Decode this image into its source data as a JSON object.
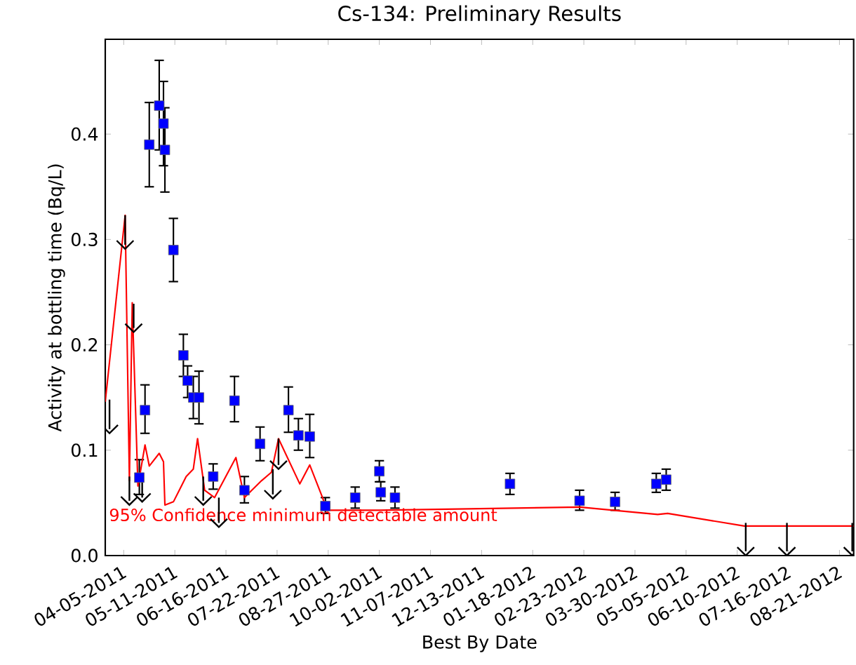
{
  "chart_data": {
    "type": "scatter",
    "title": "Cs-134: Preliminary Results",
    "xlabel": "Best By Date",
    "ylabel": "Activity at bottling time (Bq/L)",
    "xlim": [
      "2011-03-23",
      "2012-08-31"
    ],
    "ylim": [
      0,
      0.49
    ],
    "xticks": [
      {
        "value": "2011-04-05",
        "label": "04-05-2011"
      },
      {
        "value": "2011-05-11",
        "label": "05-11-2011"
      },
      {
        "value": "2011-06-16",
        "label": "06-16-2011"
      },
      {
        "value": "2011-07-22",
        "label": "07-22-2011"
      },
      {
        "value": "2011-08-27",
        "label": "08-27-2011"
      },
      {
        "value": "2011-10-02",
        "label": "10-02-2011"
      },
      {
        "value": "2011-11-07",
        "label": "11-07-2011"
      },
      {
        "value": "2011-12-13",
        "label": "12-13-2011"
      },
      {
        "value": "2012-01-18",
        "label": "01-18-2012"
      },
      {
        "value": "2012-02-23",
        "label": "02-23-2012"
      },
      {
        "value": "2012-03-30",
        "label": "03-30-2012"
      },
      {
        "value": "2012-05-05",
        "label": "05-05-2012"
      },
      {
        "value": "2012-06-10",
        "label": "06-10-2012"
      },
      {
        "value": "2012-07-16",
        "label": "07-16-2012"
      },
      {
        "value": "2012-08-21",
        "label": "08-21-2012"
      }
    ],
    "yticks": [
      {
        "value": 0,
        "label": "0.0"
      },
      {
        "value": 0.1,
        "label": "0.1"
      },
      {
        "value": 0.2,
        "label": "0.2"
      },
      {
        "value": 0.3,
        "label": "0.3"
      },
      {
        "value": 0.4,
        "label": "0.4"
      }
    ],
    "grid": false,
    "series": [
      {
        "marker": "square",
        "color": "#0000ff",
        "x": [
          "2011-04-16",
          "2011-04-20",
          "2011-04-23",
          "2011-04-30",
          "2011-05-03",
          "2011-05-04",
          "2011-05-10",
          "2011-05-17",
          "2011-05-20",
          "2011-05-24",
          "2011-05-28",
          "2011-06-07",
          "2011-06-22",
          "2011-06-29",
          "2011-07-10",
          "2011-07-30",
          "2011-08-06",
          "2011-08-14",
          "2011-08-25",
          "2011-09-15",
          "2011-10-02",
          "2011-10-03",
          "2011-10-13",
          "2012-01-02",
          "2012-02-20",
          "2012-03-16",
          "2012-04-14",
          "2012-04-21"
        ],
        "values": [
          0.074,
          0.138,
          0.39,
          0.427,
          0.41,
          0.385,
          0.29,
          0.19,
          0.166,
          0.15,
          0.15,
          0.075,
          0.147,
          0.062,
          0.106,
          0.138,
          0.114,
          0.113,
          0.047,
          0.055,
          0.08,
          0.06,
          0.055,
          0.068,
          0.052,
          0.051,
          0.068,
          0.072
        ],
        "errors": [
          [
            0.058,
            0.091
          ],
          [
            0.116,
            0.162
          ],
          [
            0.35,
            0.43
          ],
          [
            0.385,
            0.47
          ],
          [
            0.37,
            0.45
          ],
          [
            0.345,
            0.425
          ],
          [
            0.26,
            0.32
          ],
          [
            0.17,
            0.21
          ],
          [
            0.15,
            0.18
          ],
          [
            0.13,
            0.17
          ],
          [
            0.125,
            0.175
          ],
          [
            0.063,
            0.087
          ],
          [
            0.127,
            0.17
          ],
          [
            0.05,
            0.075
          ],
          [
            0.09,
            0.122
          ],
          [
            0.117,
            0.16
          ],
          [
            0.1,
            0.13
          ],
          [
            0.093,
            0.134
          ],
          [
            0.04,
            0.055
          ],
          [
            0.045,
            0.065
          ],
          [
            0.07,
            0.09
          ],
          [
            0.052,
            0.07
          ],
          [
            0.045,
            0.065
          ],
          [
            0.058,
            0.078
          ],
          [
            0.043,
            0.062
          ],
          [
            0.043,
            0.06
          ],
          [
            0.06,
            0.078
          ],
          [
            0.062,
            0.082
          ]
        ]
      },
      {
        "type": "line",
        "name": "95% Confidence minimum detectable amount",
        "marker": "none",
        "color": "#ff0000",
        "x": [
          "2011-03-23",
          "2011-04-06",
          "2011-04-09",
          "2011-04-11",
          "2011-04-15",
          "2011-04-20",
          "2011-04-23",
          "2011-04-30",
          "2011-05-03",
          "2011-05-04",
          "2011-05-10",
          "2011-05-19",
          "2011-05-24",
          "2011-05-27",
          "2011-06-01",
          "2011-06-08",
          "2011-06-23",
          "2011-06-29",
          "2011-07-11",
          "2011-07-18",
          "2011-07-23",
          "2011-08-07",
          "2011-08-14",
          "2011-08-23",
          "2011-08-26",
          "2011-10-02",
          "2012-02-20",
          "2012-04-15",
          "2012-04-22",
          "2012-06-15",
          "2012-08-31"
        ],
        "values": [
          0.146,
          0.323,
          0.071,
          0.24,
          0.066,
          0.105,
          0.085,
          0.097,
          0.089,
          0.048,
          0.051,
          0.075,
          0.082,
          0.111,
          0.062,
          0.055,
          0.093,
          0.055,
          0.071,
          0.079,
          0.111,
          0.068,
          0.086,
          0.055,
          0.043,
          0.043,
          0.046,
          0.039,
          0.04,
          0.028,
          0.028
        ]
      },
      {
        "color": "#000000",
        "x": [
          "2011-03-26",
          "2011-04-06",
          "2011-04-09",
          "2011-04-12",
          "2011-04-18",
          "2011-05-31",
          "2011-06-11",
          "2011-07-19",
          "2011-07-23",
          "2012-06-16",
          "2012-07-15",
          "2012-08-30"
        ],
        "values": [
          0.12,
          0.295,
          0.052,
          0.216,
          0.055,
          0.052,
          0.031,
          0.058,
          0.086,
          0.004,
          0.004,
          0.004
        ],
        "errors": [
          [
            0.12,
            0.148
          ],
          [
            0.295,
            0.323
          ],
          [
            0.052,
            0.075
          ],
          [
            0.216,
            0.239
          ],
          [
            0.055,
            0.072
          ],
          [
            0.052,
            0.075
          ],
          [
            0.031,
            0.055
          ],
          [
            0.058,
            0.082
          ],
          [
            0.086,
            0.111
          ],
          [
            0.004,
            0.031
          ],
          [
            0.004,
            0.031
          ],
          [
            0.004,
            0.031
          ]
        ]
      }
    ]
  }
}
